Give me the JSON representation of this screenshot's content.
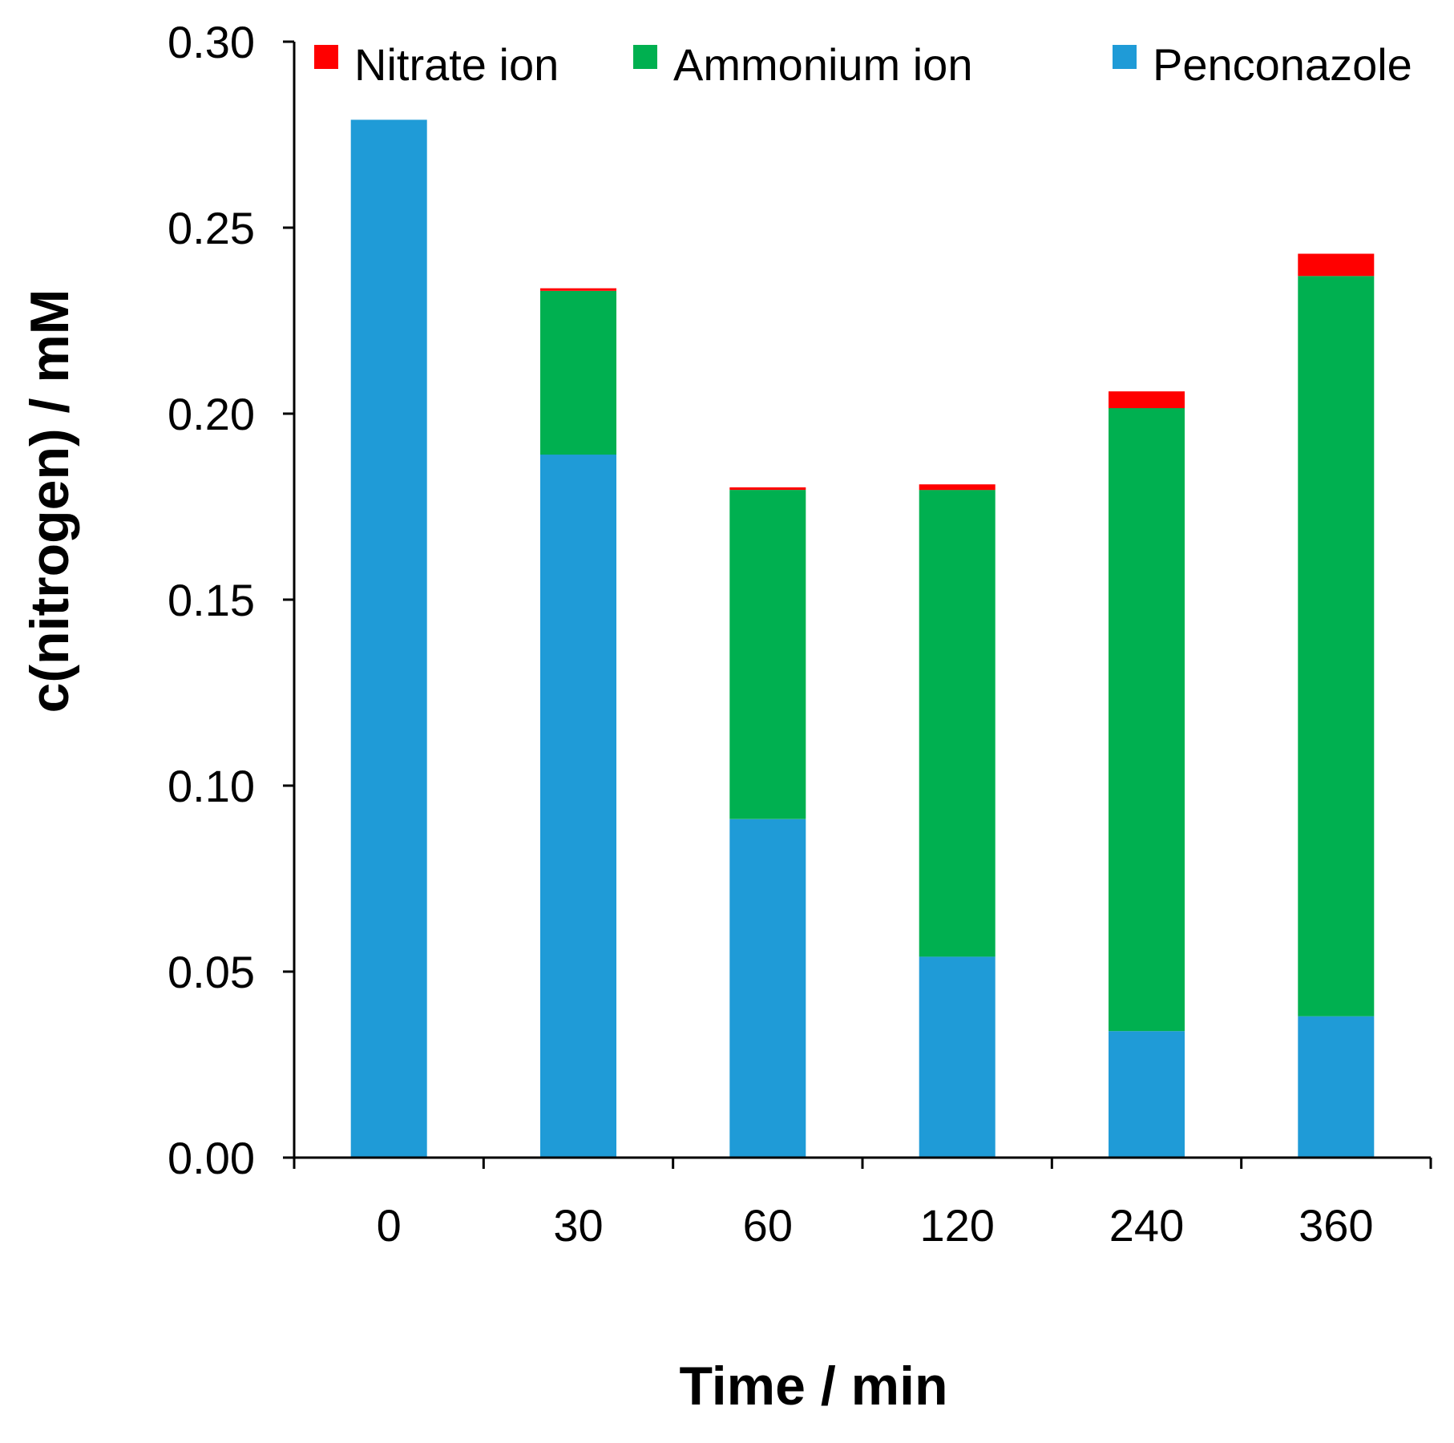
{
  "chart_data": {
    "type": "bar",
    "stacked": true,
    "title": "",
    "xlabel": "Time / min",
    "ylabel": "c(nitrogen) / mM",
    "ylim": [
      0,
      0.3
    ],
    "yticks": [
      "0.00",
      "0.05",
      "0.10",
      "0.15",
      "0.20",
      "0.25",
      "0.30"
    ],
    "grid": false,
    "legend_position": "top",
    "categories": [
      "0",
      "30",
      "60",
      "120",
      "240",
      "360"
    ],
    "series": [
      {
        "name": "Penconazole",
        "color": "#1f9bd7",
        "values": [
          0.279,
          0.189,
          0.091,
          0.054,
          0.034,
          0.038
        ]
      },
      {
        "name": "Ammonium ion",
        "color": "#00b050",
        "values": [
          0.0,
          0.044,
          0.0885,
          0.1255,
          0.1675,
          0.199
        ]
      },
      {
        "name": "Nitrate ion",
        "color": "#ff0000",
        "values": [
          0.0,
          0.0007,
          0.0007,
          0.0015,
          0.0045,
          0.006
        ]
      }
    ],
    "legend_order": [
      "Nitrate ion",
      "Ammonium ion",
      "Penconazole"
    ]
  }
}
